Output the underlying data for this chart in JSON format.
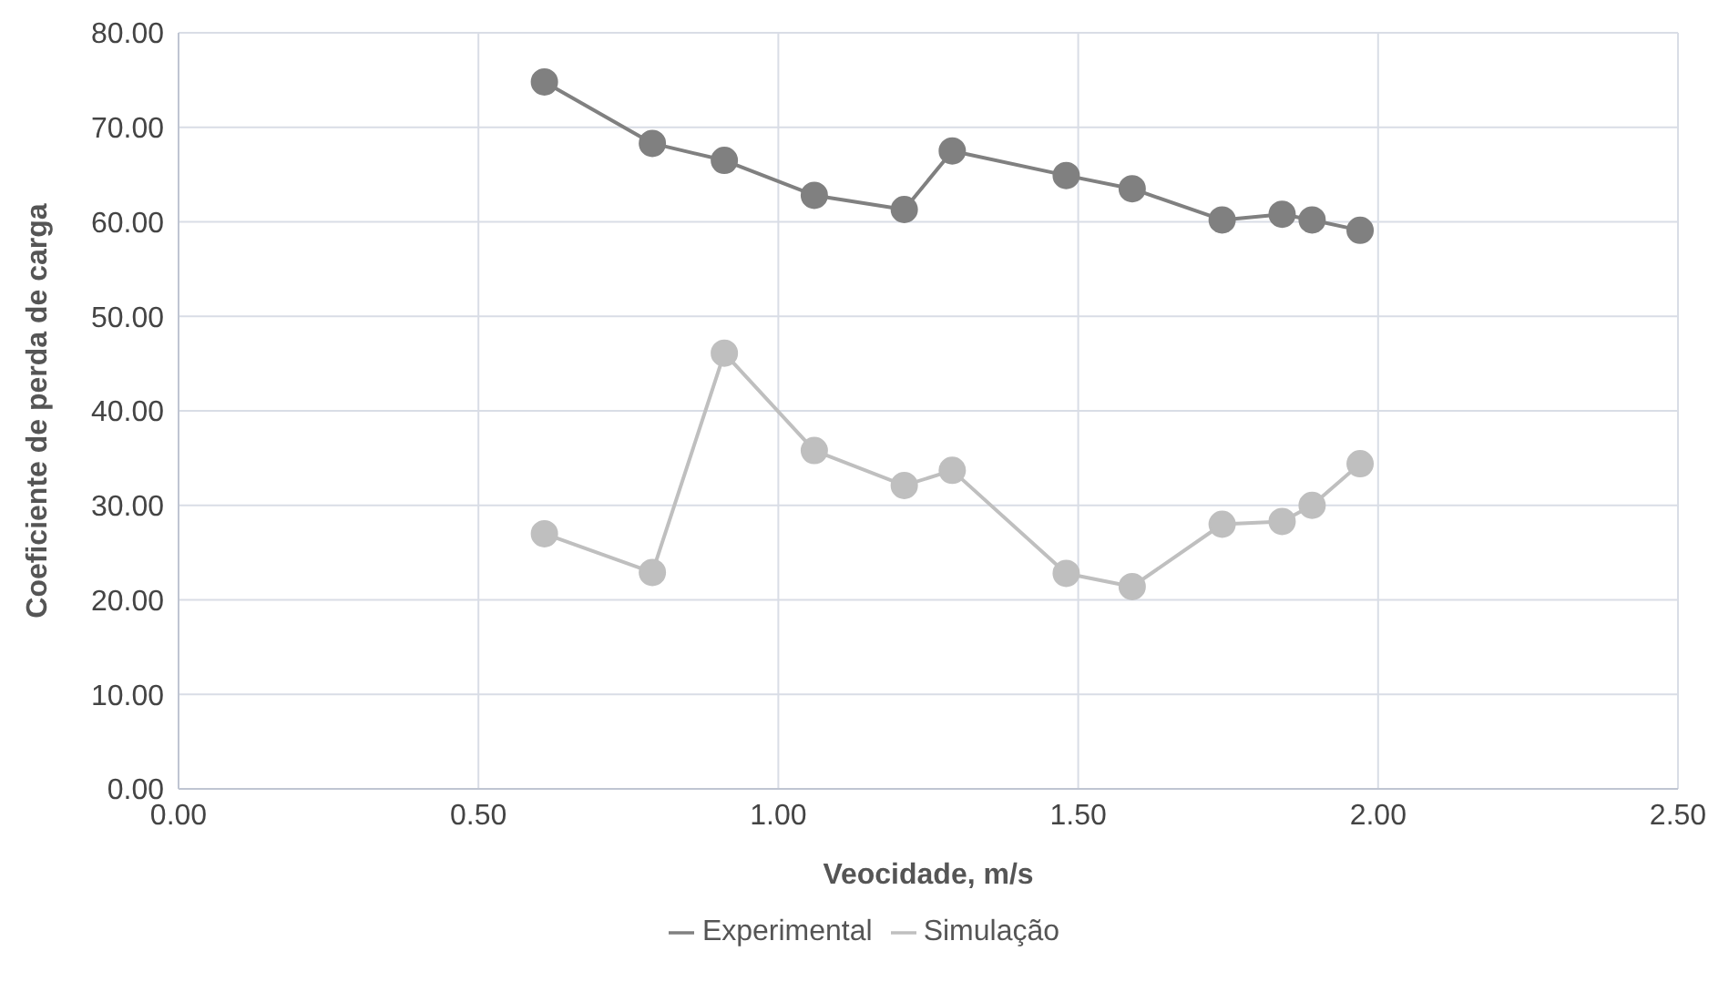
{
  "chart_data": {
    "type": "line",
    "xlabel": "Veocidade, m/s",
    "ylabel": "Coeficiente de perda de carga",
    "x": [
      0.61,
      0.79,
      0.91,
      1.06,
      1.21,
      1.29,
      1.48,
      1.59,
      1.74,
      1.84,
      1.89,
      1.97
    ],
    "series": [
      {
        "name": "Experimental",
        "color": "#808080",
        "values": [
          74.8,
          68.3,
          66.5,
          62.8,
          61.3,
          67.5,
          64.9,
          63.5,
          60.2,
          60.8,
          60.2,
          59.1
        ]
      },
      {
        "name": "Simulação",
        "color": "#bfbfbf",
        "values": [
          27.0,
          22.9,
          46.1,
          35.8,
          32.1,
          33.7,
          22.8,
          21.4,
          28.0,
          28.3,
          30.0,
          34.4
        ]
      }
    ],
    "xlim": [
      0,
      2.5
    ],
    "xticks": [
      {
        "value": 0,
        "label": "0.00"
      },
      {
        "value": 0.5,
        "label": "0.50"
      },
      {
        "value": 1,
        "label": "1.00"
      },
      {
        "value": 1.5,
        "label": "1.50"
      },
      {
        "value": 2,
        "label": "2.00"
      },
      {
        "value": 2.5,
        "label": "2.50"
      }
    ],
    "ylim": [
      0,
      80
    ],
    "yticks": [
      {
        "value": 0,
        "label": "0.00"
      },
      {
        "value": 10,
        "label": "10.00"
      },
      {
        "value": 20,
        "label": "20.00"
      },
      {
        "value": 30,
        "label": "30.00"
      },
      {
        "value": 40,
        "label": "40.00"
      },
      {
        "value": 50,
        "label": "50.00"
      },
      {
        "value": 60,
        "label": "60.00"
      },
      {
        "value": 70,
        "label": "70.00"
      },
      {
        "value": 80,
        "label": "80.00"
      }
    ],
    "grid": true,
    "legend": "bottom",
    "marker": "circle",
    "line_style": "solid"
  }
}
